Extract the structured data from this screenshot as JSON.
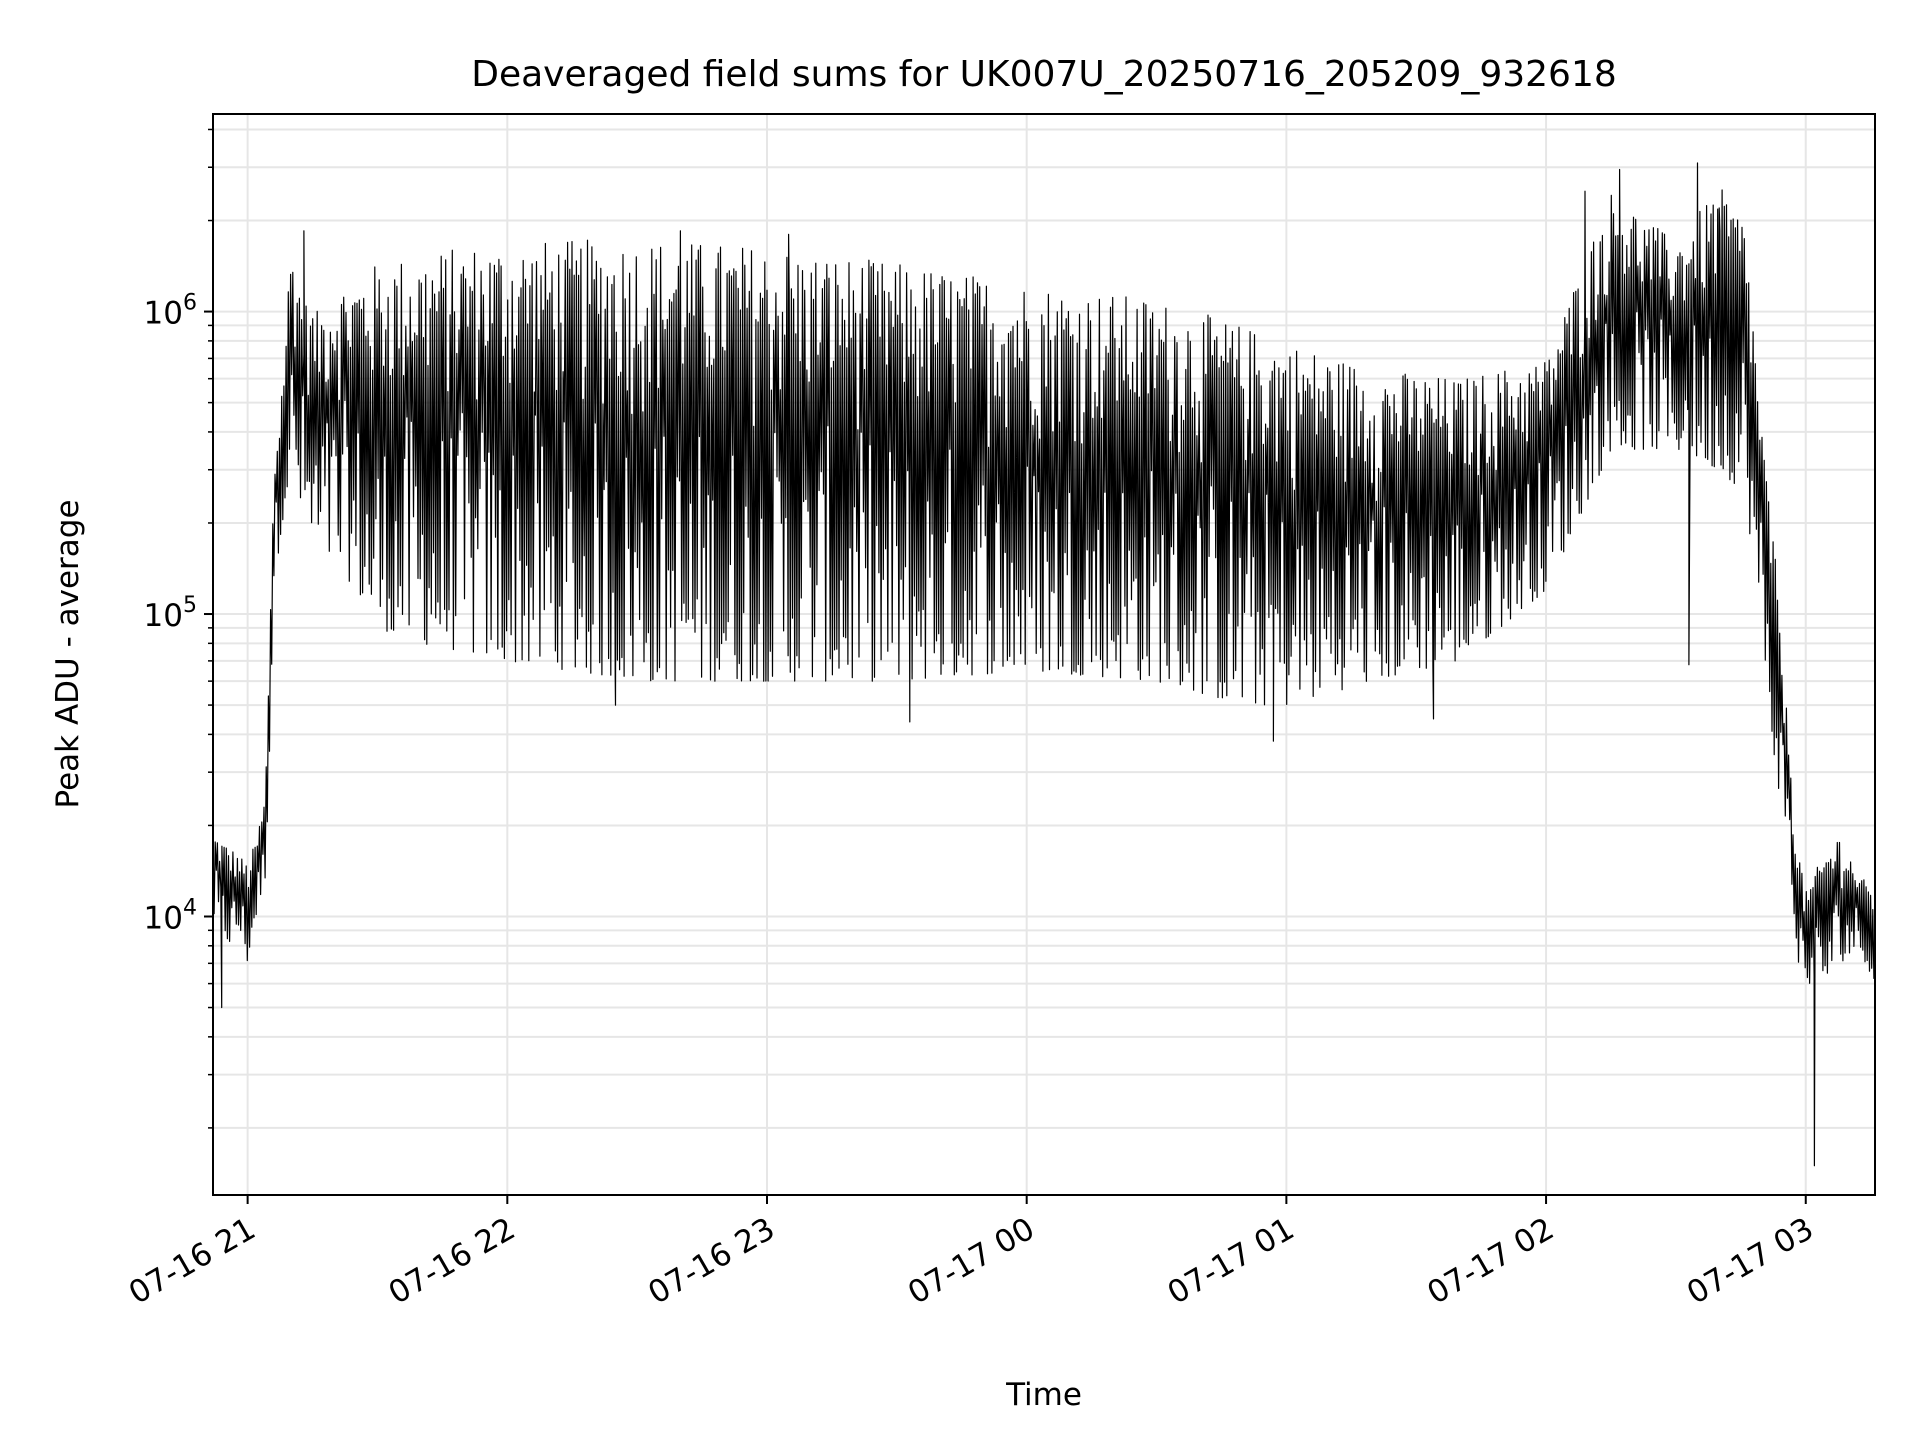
{
  "chart_data": {
    "type": "line",
    "title": "Deaveraged field sums for UK007U_20250716_205209_932618",
    "xlabel": "Time",
    "ylabel": "Peak ADU - average",
    "yscale": "log",
    "ylim": [
      1200,
      4500000
    ],
    "xlim": [
      "2025-07-16 20:52",
      "2025-07-17 03:16"
    ],
    "grid": true,
    "line_color": "#000000",
    "x_ticks": [
      {
        "label": "07-16 21",
        "time": "2025-07-16 21:00"
      },
      {
        "label": "07-16 22",
        "time": "2025-07-16 22:00"
      },
      {
        "label": "07-16 23",
        "time": "2025-07-16 23:00"
      },
      {
        "label": "07-17 00",
        "time": "2025-07-17 00:00"
      },
      {
        "label": "07-17 01",
        "time": "2025-07-17 01:00"
      },
      {
        "label": "07-17 02",
        "time": "2025-07-17 02:00"
      },
      {
        "label": "07-17 03",
        "time": "2025-07-17 03:00"
      }
    ],
    "y_ticks": [
      {
        "base": "10",
        "exp": "4",
        "value": 10000
      },
      {
        "base": "10",
        "exp": "5",
        "value": 100000
      },
      {
        "base": "10",
        "exp": "6",
        "value": 1000000
      }
    ],
    "series": [
      {
        "time": [
          "2025-07-16 20:52",
          "2025-07-16 20:56",
          "2025-07-16 20:58",
          "2025-07-16 21:00",
          "2025-07-16 21:02",
          "2025-07-16 21:04",
          "2025-07-16 21:05",
          "2025-07-16 21:06",
          "2025-07-16 21:08",
          "2025-07-16 21:10",
          "2025-07-16 21:13",
          "2025-07-16 21:16",
          "2025-07-16 21:20",
          "2025-07-16 21:25",
          "2025-07-16 21:30",
          "2025-07-16 21:40",
          "2025-07-16 21:50",
          "2025-07-16 22:00",
          "2025-07-16 22:30",
          "2025-07-16 23:00",
          "2025-07-16 23:30",
          "2025-07-17 00:00",
          "2025-07-17 00:30",
          "2025-07-17 00:50",
          "2025-07-17 01:00",
          "2025-07-17 01:20",
          "2025-07-17 01:40",
          "2025-07-17 02:00",
          "2025-07-17 02:15",
          "2025-07-17 02:30",
          "2025-07-17 02:40",
          "2025-07-17 02:46",
          "2025-07-17 02:50",
          "2025-07-17 02:53",
          "2025-07-17 02:56",
          "2025-07-17 02:58",
          "2025-07-17 03:00",
          "2025-07-17 03:04",
          "2025-07-17 03:08",
          "2025-07-17 03:12",
          "2025-07-17 03:16"
        ],
        "low": [
          10000,
          8000,
          9000,
          7000,
          10000,
          13000,
          30000,
          120000,
          200000,
          300000,
          200000,
          150000,
          150000,
          120000,
          90000,
          80000,
          75000,
          70000,
          60000,
          60000,
          60000,
          65000,
          60000,
          50000,
          50000,
          60000,
          70000,
          120000,
          350000,
          350000,
          300000,
          250000,
          80000,
          30000,
          18000,
          7000,
          6000,
          6000,
          7000,
          8000,
          6000
        ],
        "high": [
          19000,
          17000,
          16000,
          15000,
          18000,
          25000,
          70000,
          300000,
          600000,
          1700000,
          1100000,
          1000000,
          1200000,
          1300000,
          1450000,
          1550000,
          1650000,
          1700000,
          1750000,
          1650000,
          1450000,
          1250000,
          1100000,
          900000,
          800000,
          650000,
          600000,
          700000,
          2500000,
          1700000,
          2600000,
          2000000,
          400000,
          150000,
          40000,
          18000,
          12000,
          16000,
          19000,
          14000,
          12000
        ],
        "peaks": [
          {
            "time": "2025-07-16 21:13",
            "value": 1850000
          },
          {
            "time": "2025-07-16 22:40",
            "value": 1850000
          },
          {
            "time": "2025-07-16 23:05",
            "value": 1800000
          },
          {
            "time": "2025-07-17 02:09",
            "value": 2500000
          },
          {
            "time": "2025-07-17 02:17",
            "value": 2950000
          },
          {
            "time": "2025-07-17 02:35",
            "value": 3100000
          },
          {
            "time": "2025-07-17 02:40",
            "value": 2200000
          }
        ],
        "dips": [
          {
            "time": "2025-07-16 20:54",
            "value": 5000
          },
          {
            "time": "2025-07-16 22:25",
            "value": 50000
          },
          {
            "time": "2025-07-16 23:33",
            "value": 44000
          },
          {
            "time": "2025-07-17 00:57",
            "value": 38000
          },
          {
            "time": "2025-07-17 01:34",
            "value": 45000
          },
          {
            "time": "2025-07-17 02:33",
            "value": 68000
          },
          {
            "time": "2025-07-17 03:02",
            "value": 1500
          }
        ]
      }
    ]
  }
}
